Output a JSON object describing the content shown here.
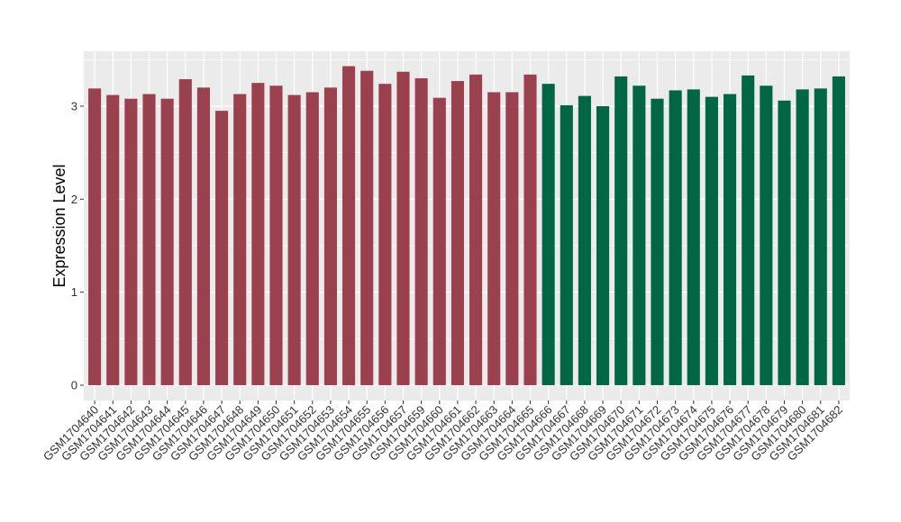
{
  "chart_data": {
    "type": "bar",
    "title": "",
    "xlabel": "",
    "ylabel": "Expression Level",
    "ylim": [
      -0.165,
      3.59
    ],
    "yticks": [
      0,
      1,
      2,
      3
    ],
    "grid": true,
    "categories": [
      "GSM1704640",
      "GSM1704641",
      "GSM1704642",
      "GSM1704643",
      "GSM1704644",
      "GSM1704645",
      "GSM1704646",
      "GSM1704647",
      "GSM1704648",
      "GSM1704649",
      "GSM1704650",
      "GSM1704651",
      "GSM1704652",
      "GSM1704653",
      "GSM1704654",
      "GSM1704655",
      "GSM1704656",
      "GSM1704657",
      "GSM1704659",
      "GSM1704660",
      "GSM1704661",
      "GSM1704662",
      "GSM1704663",
      "GSM1704664",
      "GSM1704665",
      "GSM1704666",
      "GSM1704667",
      "GSM1704668",
      "GSM1704669",
      "GSM1704670",
      "GSM1704671",
      "GSM1704672",
      "GSM1704673",
      "GSM1704674",
      "GSM1704675",
      "GSM1704676",
      "GSM1704677",
      "GSM1704678",
      "GSM1704679",
      "GSM1704680",
      "GSM1704681",
      "GSM1704682"
    ],
    "values": [
      3.19,
      3.12,
      3.08,
      3.13,
      3.08,
      3.29,
      3.2,
      2.95,
      3.13,
      3.25,
      3.22,
      3.12,
      3.15,
      3.2,
      3.43,
      3.38,
      3.24,
      3.37,
      3.3,
      3.09,
      3.27,
      3.34,
      3.15,
      3.15,
      3.34,
      3.24,
      3.01,
      3.11,
      3.0,
      3.32,
      3.22,
      3.08,
      3.17,
      3.18,
      3.1,
      3.13,
      3.33,
      3.22,
      3.06,
      3.18,
      3.19,
      3.32
    ],
    "groups": [
      0,
      0,
      0,
      0,
      0,
      0,
      0,
      0,
      0,
      0,
      0,
      0,
      0,
      0,
      0,
      0,
      0,
      0,
      0,
      0,
      0,
      0,
      0,
      0,
      0,
      1,
      1,
      1,
      1,
      1,
      1,
      1,
      1,
      1,
      1,
      1,
      1,
      1,
      1,
      1,
      1,
      1
    ],
    "group_colors": [
      "#9a404f",
      "#006644"
    ],
    "panel_background": "#ebebeb"
  }
}
